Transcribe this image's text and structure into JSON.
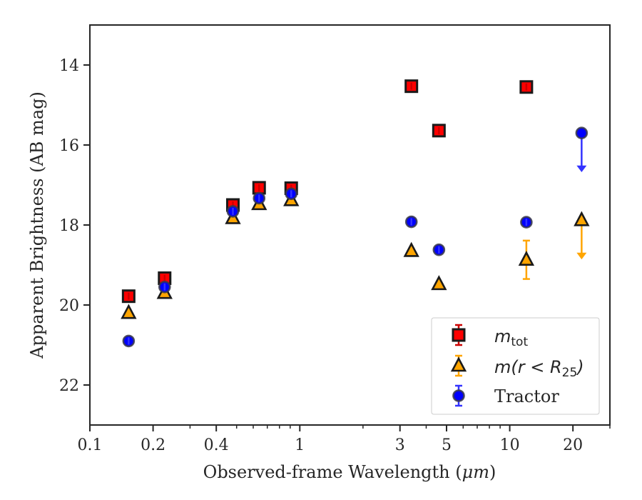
{
  "chart_data": {
    "type": "scatter",
    "xlabel_prefix": "Observed-frame Wavelength (",
    "xlabel_unit": "μm",
    "xlabel_suffix": ")",
    "ylabel": "Apparent Brightness (AB mag)",
    "xscale": "log",
    "xlim": [
      0.1,
      30
    ],
    "ylim": [
      23.0,
      13.0
    ],
    "y_inverted": true,
    "x_ticks": [
      0.1,
      0.2,
      0.4,
      1,
      3,
      5,
      10,
      20
    ],
    "x_tick_labels": [
      "0.1",
      "0.2",
      "0.4",
      "1",
      "3",
      "5",
      "10",
      "20"
    ],
    "y_ticks": [
      14,
      16,
      18,
      20,
      22
    ],
    "y_tick_labels": [
      "14",
      "16",
      "18",
      "20",
      "22"
    ],
    "grid": false,
    "legend_position": "lower-right",
    "series": [
      {
        "key": "mtot",
        "name_main": "m",
        "name_sub": "tot",
        "marker": "square",
        "color": "#ff0000",
        "errcolor": "#cc0000",
        "points": [
          {
            "x": 0.153,
            "y": 19.78
          },
          {
            "x": 0.227,
            "y": 19.33
          },
          {
            "x": 0.48,
            "y": 17.5
          },
          {
            "x": 0.64,
            "y": 17.07
          },
          {
            "x": 0.91,
            "y": 17.08
          },
          {
            "x": 3.4,
            "y": 14.53
          },
          {
            "x": 4.6,
            "y": 15.64
          },
          {
            "x": 12.0,
            "y": 14.55
          }
        ]
      },
      {
        "key": "mr25",
        "name_main": "m(r < R",
        "name_sub": "25",
        "name_end": ")",
        "marker": "triangle",
        "color": "#ffa500",
        "errcolor": "#ffa500",
        "points": [
          {
            "x": 0.153,
            "y": 20.2
          },
          {
            "x": 0.227,
            "y": 19.7
          },
          {
            "x": 0.48,
            "y": 17.83
          },
          {
            "x": 0.64,
            "y": 17.48
          },
          {
            "x": 0.91,
            "y": 17.38
          },
          {
            "x": 3.4,
            "y": 18.65
          },
          {
            "x": 4.6,
            "y": 19.48
          },
          {
            "x": 12.0,
            "y": 18.87,
            "err": 0.48
          },
          {
            "x": 22.0,
            "y": 17.88,
            "upper_limit": true
          }
        ]
      },
      {
        "key": "tractor",
        "name": "Tractor",
        "marker": "circle",
        "color": "#0000ff",
        "errcolor": "#3333ff",
        "points": [
          {
            "x": 0.153,
            "y": 20.9
          },
          {
            "x": 0.227,
            "y": 19.55
          },
          {
            "x": 0.48,
            "y": 17.66
          },
          {
            "x": 0.64,
            "y": 17.33
          },
          {
            "x": 0.91,
            "y": 17.22
          },
          {
            "x": 3.4,
            "y": 17.92
          },
          {
            "x": 4.6,
            "y": 18.62
          },
          {
            "x": 12.0,
            "y": 17.93
          },
          {
            "x": 22.0,
            "y": 15.7,
            "upper_limit": true
          }
        ]
      }
    ]
  }
}
